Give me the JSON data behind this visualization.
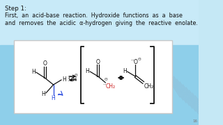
{
  "bg_top_color": "#c5e8f5",
  "bg_bottom_color": "#8ecfea",
  "text_color": "#111111",
  "box_bg": "#ffffff",
  "box_border": "#c8c8c8",
  "diag_color": "#a0b8cc",
  "title": "Step 1:",
  "line2": "First,  an  acid-base  reaction.  Hydroxide  functions  as  a  base",
  "line3": "and  removes  the  acidic  α-hydrogen  giving  the  reactive  enolate.",
  "fs_title": 6.2,
  "fs_body": 5.8,
  "fs_chem": 5.5,
  "fs_small": 4.2
}
